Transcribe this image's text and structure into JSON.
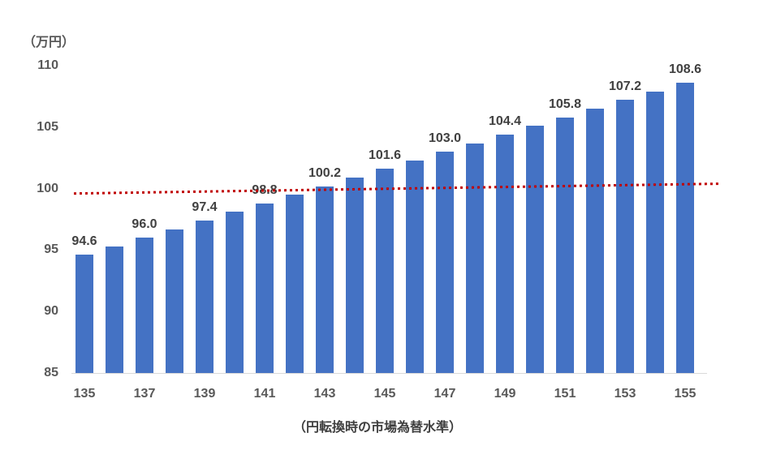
{
  "chart_data": {
    "type": "bar",
    "title": "",
    "ylabel": "（万円）",
    "xlabel": "（円転換時の市場為替水準）",
    "x": [
      135,
      136,
      137,
      138,
      139,
      140,
      141,
      142,
      143,
      144,
      145,
      146,
      147,
      148,
      149,
      150,
      151,
      152,
      153,
      154,
      155
    ],
    "values": [
      94.6,
      95.3,
      96.0,
      96.7,
      97.4,
      98.1,
      98.8,
      99.5,
      100.2,
      100.9,
      101.6,
      102.3,
      103.0,
      103.7,
      104.4,
      105.1,
      105.8,
      106.5,
      107.2,
      107.9,
      108.6
    ],
    "data_labels": [
      "94.6",
      null,
      "96.0",
      null,
      "97.4",
      null,
      "98.8",
      null,
      "100.2",
      null,
      "101.6",
      null,
      "103.0",
      null,
      "104.4",
      null,
      "105.8",
      null,
      "107.2",
      null,
      "108.6"
    ],
    "ylim": [
      85,
      110
    ],
    "yticks": [
      110,
      105,
      100,
      95,
      90,
      85
    ],
    "xticks": [
      135,
      137,
      139,
      141,
      143,
      145,
      147,
      149,
      151,
      153,
      155
    ],
    "grid": false,
    "legend": "none",
    "bar_color": "#4472C4",
    "data_label_color": "#404040",
    "tick_label_color": "#595959",
    "axis_line_color": "#d9d9d9",
    "reference_line": {
      "style": "dotted",
      "color": "#C00000",
      "start_value": 99.6,
      "end_value": 100.4
    }
  }
}
